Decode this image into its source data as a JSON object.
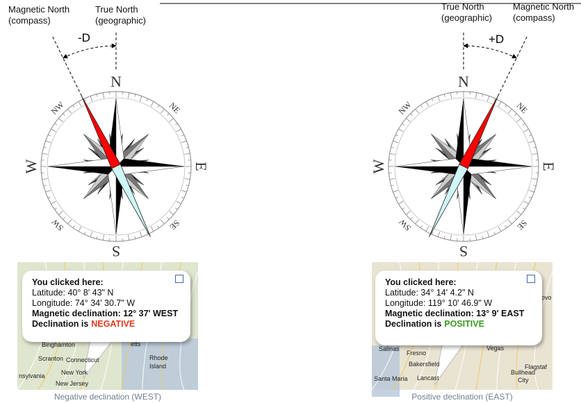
{
  "panels": [
    {
      "magnetic_north": [
        "Magnetic North",
        "(compass)"
      ],
      "true_north": [
        "True North",
        "(geographic)"
      ],
      "declination_symbol": "-D",
      "compass": {
        "N": "N",
        "NE": "NE",
        "E": "E",
        "SE": "SE",
        "S": "S",
        "SW": "SW",
        "W": "W",
        "NW": "NW"
      },
      "popup": {
        "title": "You clicked here:",
        "latitude": "Latitude: 40° 8' 43\" N",
        "longitude": "Longitude: 74° 34' 30.7\" W",
        "declination": "Magnetic declination: 12° 37' WEST",
        "sign_prefix": "Declination is",
        "sign": "NEGATIVE"
      },
      "map_labels": [
        "Binghamton",
        "Scranton",
        "Connecticut",
        "Rhode",
        "Island",
        "New York",
        "New Jersey",
        "nsylvania",
        "etts"
      ],
      "caption": "Negative declination (WEST)"
    },
    {
      "magnetic_north": [
        "Magnetic North",
        "(compass)"
      ],
      "true_north": [
        "True North",
        "(geographic)"
      ],
      "declination_symbol": "+D",
      "compass": {
        "N": "N",
        "NE": "NE",
        "E": "E",
        "SE": "SE",
        "S": "S",
        "SW": "SW",
        "W": "W",
        "NW": "NW"
      },
      "popup": {
        "title": "You clicked here:",
        "latitude": "Latitude: 34° 14' 4.2\" N",
        "longitude": "Longitude: 119° 10' 46.9\" W",
        "declination": "Magnetic declination: 13° 9' EAST",
        "sign_prefix": "Declination is",
        "sign": "POSITIVE"
      },
      "map_labels": [
        "Salinas",
        "Fresno",
        "Bakersfield",
        "Santa Maria",
        "Lancast",
        "Vegas",
        "Flagstaf",
        "Bullhead",
        "City",
        "Provo"
      ],
      "caption": "Positive declination (EAST)"
    }
  ]
}
